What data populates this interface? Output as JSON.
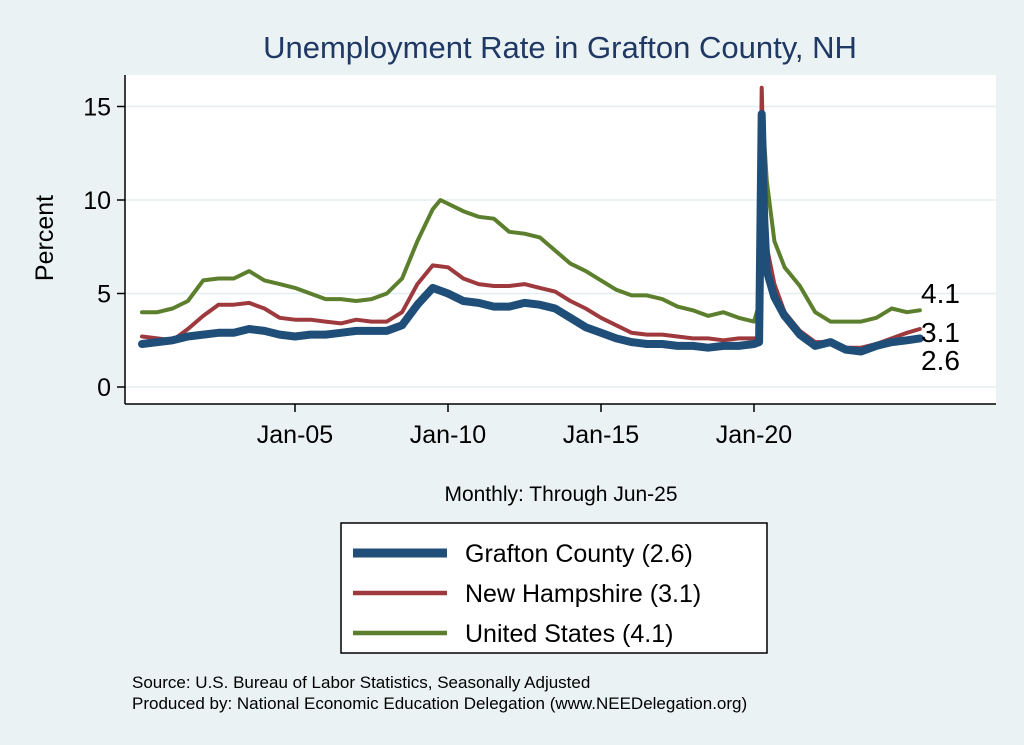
{
  "chart_data": {
    "type": "line",
    "title": "Unemployment Rate in Grafton  County, NH",
    "ylabel": "Percent",
    "xlabel": "Monthly: Through Jun-25",
    "ylim": [
      0,
      17
    ],
    "yticks": [
      "0",
      "5",
      "10",
      "15"
    ],
    "xticks": [
      "Jan-05",
      "Jan-10",
      "Jan-15",
      "Jan-20"
    ],
    "grid": true,
    "legend_position": "bottom",
    "end_labels": [
      "4.1",
      "3.1",
      "2.6"
    ],
    "series": [
      {
        "name": "Grafton  County (2.6)",
        "color": "#1f4e79",
        "line_width": 8,
        "points": [
          [
            "2000-01",
            2.3
          ],
          [
            "2000-07",
            2.4
          ],
          [
            "2001-01",
            2.5
          ],
          [
            "2001-07",
            2.7
          ],
          [
            "2002-01",
            2.8
          ],
          [
            "2002-07",
            2.9
          ],
          [
            "2003-01",
            2.9
          ],
          [
            "2003-07",
            3.1
          ],
          [
            "2004-01",
            3.0
          ],
          [
            "2004-07",
            2.8
          ],
          [
            "2005-01",
            2.7
          ],
          [
            "2005-07",
            2.8
          ],
          [
            "2006-01",
            2.8
          ],
          [
            "2006-07",
            2.9
          ],
          [
            "2007-01",
            3.0
          ],
          [
            "2007-07",
            3.0
          ],
          [
            "2008-01",
            3.0
          ],
          [
            "2008-07",
            3.3
          ],
          [
            "2009-01",
            4.4
          ],
          [
            "2009-07",
            5.3
          ],
          [
            "2010-01",
            5.0
          ],
          [
            "2010-07",
            4.6
          ],
          [
            "2011-01",
            4.5
          ],
          [
            "2011-07",
            4.3
          ],
          [
            "2012-01",
            4.3
          ],
          [
            "2012-07",
            4.5
          ],
          [
            "2013-01",
            4.4
          ],
          [
            "2013-07",
            4.2
          ],
          [
            "2014-01",
            3.7
          ],
          [
            "2014-07",
            3.2
          ],
          [
            "2015-01",
            2.9
          ],
          [
            "2015-07",
            2.6
          ],
          [
            "2016-01",
            2.4
          ],
          [
            "2016-07",
            2.3
          ],
          [
            "2017-01",
            2.3
          ],
          [
            "2017-07",
            2.2
          ],
          [
            "2018-01",
            2.2
          ],
          [
            "2018-07",
            2.1
          ],
          [
            "2019-01",
            2.2
          ],
          [
            "2019-07",
            2.2
          ],
          [
            "2020-01",
            2.3
          ],
          [
            "2020-03",
            2.4
          ],
          [
            "2020-04",
            14.6
          ],
          [
            "2020-05",
            9.0
          ],
          [
            "2020-06",
            6.2
          ],
          [
            "2020-09",
            4.8
          ],
          [
            "2021-01",
            3.8
          ],
          [
            "2021-07",
            2.8
          ],
          [
            "2022-01",
            2.2
          ],
          [
            "2022-07",
            2.4
          ],
          [
            "2023-01",
            2.0
          ],
          [
            "2023-07",
            1.9
          ],
          [
            "2024-01",
            2.2
          ],
          [
            "2024-07",
            2.4
          ],
          [
            "2025-01",
            2.5
          ],
          [
            "2025-06",
            2.6
          ]
        ]
      },
      {
        "name": "New Hampshire (3.1)",
        "color": "#9e3a3e",
        "line_width": 4,
        "points": [
          [
            "2000-01",
            2.7
          ],
          [
            "2000-07",
            2.6
          ],
          [
            "2001-01",
            2.5
          ],
          [
            "2001-07",
            3.1
          ],
          [
            "2002-01",
            3.8
          ],
          [
            "2002-07",
            4.4
          ],
          [
            "2003-01",
            4.4
          ],
          [
            "2003-07",
            4.5
          ],
          [
            "2004-01",
            4.2
          ],
          [
            "2004-07",
            3.7
          ],
          [
            "2005-01",
            3.6
          ],
          [
            "2005-07",
            3.6
          ],
          [
            "2006-01",
            3.5
          ],
          [
            "2006-07",
            3.4
          ],
          [
            "2007-01",
            3.6
          ],
          [
            "2007-07",
            3.5
          ],
          [
            "2008-01",
            3.5
          ],
          [
            "2008-07",
            4.0
          ],
          [
            "2009-01",
            5.5
          ],
          [
            "2009-07",
            6.5
          ],
          [
            "2010-01",
            6.4
          ],
          [
            "2010-07",
            5.8
          ],
          [
            "2011-01",
            5.5
          ],
          [
            "2011-07",
            5.4
          ],
          [
            "2012-01",
            5.4
          ],
          [
            "2012-07",
            5.5
          ],
          [
            "2013-01",
            5.3
          ],
          [
            "2013-07",
            5.1
          ],
          [
            "2014-01",
            4.6
          ],
          [
            "2014-07",
            4.2
          ],
          [
            "2015-01",
            3.7
          ],
          [
            "2015-07",
            3.3
          ],
          [
            "2016-01",
            2.9
          ],
          [
            "2016-07",
            2.8
          ],
          [
            "2017-01",
            2.8
          ],
          [
            "2017-07",
            2.7
          ],
          [
            "2018-01",
            2.6
          ],
          [
            "2018-07",
            2.6
          ],
          [
            "2019-01",
            2.5
          ],
          [
            "2019-07",
            2.6
          ],
          [
            "2020-01",
            2.6
          ],
          [
            "2020-03",
            2.6
          ],
          [
            "2020-04",
            16.0
          ],
          [
            "2020-05",
            11.0
          ],
          [
            "2020-06",
            7.5
          ],
          [
            "2020-09",
            5.5
          ],
          [
            "2021-01",
            4.0
          ],
          [
            "2021-07",
            3.0
          ],
          [
            "2022-01",
            2.4
          ],
          [
            "2022-07",
            2.4
          ],
          [
            "2023-01",
            2.1
          ],
          [
            "2023-07",
            2.1
          ],
          [
            "2024-01",
            2.3
          ],
          [
            "2024-07",
            2.6
          ],
          [
            "2025-01",
            2.9
          ],
          [
            "2025-06",
            3.1
          ]
        ]
      },
      {
        "name": "United States (4.1)",
        "color": "#5c7f2e",
        "line_width": 4,
        "points": [
          [
            "2000-01",
            4.0
          ],
          [
            "2000-07",
            4.0
          ],
          [
            "2001-01",
            4.2
          ],
          [
            "2001-07",
            4.6
          ],
          [
            "2002-01",
            5.7
          ],
          [
            "2002-07",
            5.8
          ],
          [
            "2003-01",
            5.8
          ],
          [
            "2003-07",
            6.2
          ],
          [
            "2004-01",
            5.7
          ],
          [
            "2004-07",
            5.5
          ],
          [
            "2005-01",
            5.3
          ],
          [
            "2005-07",
            5.0
          ],
          [
            "2006-01",
            4.7
          ],
          [
            "2006-07",
            4.7
          ],
          [
            "2007-01",
            4.6
          ],
          [
            "2007-07",
            4.7
          ],
          [
            "2008-01",
            5.0
          ],
          [
            "2008-07",
            5.8
          ],
          [
            "2009-01",
            7.8
          ],
          [
            "2009-07",
            9.5
          ],
          [
            "2009-10",
            10.0
          ],
          [
            "2010-07",
            9.4
          ],
          [
            "2011-01",
            9.1
          ],
          [
            "2011-07",
            9.0
          ],
          [
            "2012-01",
            8.3
          ],
          [
            "2012-07",
            8.2
          ],
          [
            "2013-01",
            8.0
          ],
          [
            "2013-07",
            7.3
          ],
          [
            "2014-01",
            6.6
          ],
          [
            "2014-07",
            6.2
          ],
          [
            "2015-01",
            5.7
          ],
          [
            "2015-07",
            5.2
          ],
          [
            "2016-01",
            4.9
          ],
          [
            "2016-07",
            4.9
          ],
          [
            "2017-01",
            4.7
          ],
          [
            "2017-07",
            4.3
          ],
          [
            "2018-01",
            4.1
          ],
          [
            "2018-07",
            3.8
          ],
          [
            "2019-01",
            4.0
          ],
          [
            "2019-07",
            3.7
          ],
          [
            "2020-01",
            3.5
          ],
          [
            "2020-03",
            4.4
          ],
          [
            "2020-04",
            14.8
          ],
          [
            "2020-05",
            13.2
          ],
          [
            "2020-06",
            11.0
          ],
          [
            "2020-09",
            7.8
          ],
          [
            "2021-01",
            6.4
          ],
          [
            "2021-07",
            5.4
          ],
          [
            "2022-01",
            4.0
          ],
          [
            "2022-07",
            3.5
          ],
          [
            "2023-01",
            3.5
          ],
          [
            "2023-07",
            3.5
          ],
          [
            "2024-01",
            3.7
          ],
          [
            "2024-07",
            4.2
          ],
          [
            "2025-01",
            4.0
          ],
          [
            "2025-06",
            4.1
          ]
        ]
      }
    ],
    "source_lines": [
      "Source: U.S. Bureau of Labor Statistics, Seasonally Adjusted",
      "Produced by: National Economic Education Delegation (www.NEEDelegation.org)"
    ]
  }
}
